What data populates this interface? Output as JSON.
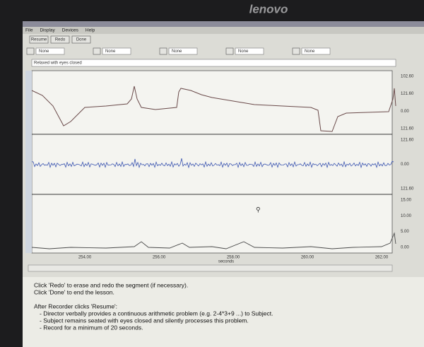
{
  "brand": "lenovo",
  "menu": [
    "File",
    "Display",
    "Devices",
    "Help"
  ],
  "buttons": [
    "Resume",
    "Redo",
    "Done"
  ],
  "channels": [
    "None",
    "None",
    "None",
    "None",
    "None"
  ],
  "segment_label": "Relaxed with eyes closed",
  "panels": [
    {
      "scale": [
        "102.60",
        "121.60",
        "0.00",
        "121.60"
      ]
    },
    {
      "scale": [
        "121.60",
        "0.00",
        "121.60"
      ]
    },
    {
      "scale": [
        "15.00",
        "10.00",
        "5.00",
        "0.00"
      ]
    }
  ],
  "x_axis": {
    "ticks": [
      "254.00",
      "256.00",
      "258.00",
      "260.00",
      "262.00"
    ],
    "unit": "seconds"
  },
  "instructions": [
    "Click 'Redo' to erase and redo the segment (if necessary).",
    "Click 'Done' to end the lesson.",
    "After Recorder clicks 'Resume':",
    "- Director verbally provides a continuous arithmetic problem (e.g. 2-4*3+9 ...) to Subject.",
    "- Subject remains seated with eyes closed and silently processes this problem.",
    "- Record for a minimum of 20 seconds."
  ]
}
